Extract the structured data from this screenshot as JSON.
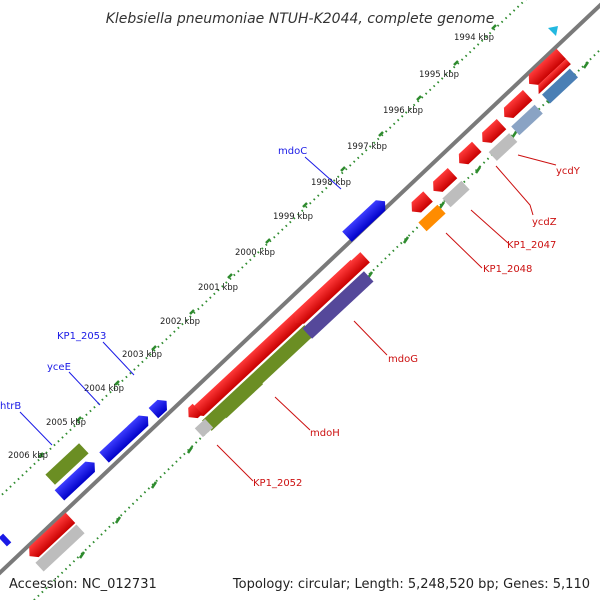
{
  "title": "Klebsiella pneumoniae NTUH-K2044, complete genome",
  "accession_text": "Accession: NC_012731",
  "summary_text": "Topology: circular; Length: 5,248,520 bp; Genes: 5,110",
  "scale_labels": [
    "1994 kbp",
    "1995 kbp",
    "1996 kbp",
    "1997 kbp",
    "1998 kbp",
    "1999 kbp",
    "2000 kbp",
    "2001 kbp",
    "2002 kbp",
    "2003 kbp",
    "2004 kbp",
    "2005 kbp",
    "2006 kbp"
  ],
  "gene_labels": {
    "forward": [
      "mdoC",
      "KP1_2053",
      "yceE",
      "htrB"
    ],
    "reverse": [
      "ycdY",
      "ycdZ",
      "KP1_2047",
      "KP1_2048",
      "mdoG",
      "mdoH",
      "KP1_2052"
    ]
  },
  "colors": {
    "backbone": "#7a7a7a",
    "forward_gene": "#1a1ae6",
    "reverse_gene": "#e61a1a",
    "cds_green": "#6b8e23",
    "cds_purple": "#55489a",
    "cds_steel": "#4a7fb5",
    "cds_gray": "#bdbdbd",
    "cds_orange": "#ff8c00",
    "dotted_track": "#2e8b2e",
    "forward_label": "#1a1ae6",
    "reverse_label": "#cc1010"
  }
}
